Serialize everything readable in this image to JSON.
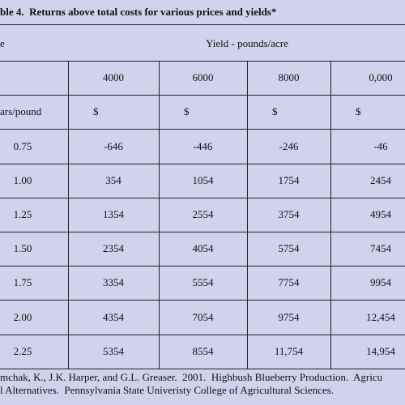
{
  "title": "ble 4.  Returns above total costs for various prices and yields*",
  "table": {
    "group_header": [
      "e",
      "Yield - pounds/acre"
    ],
    "columns": [
      "4000",
      "6000",
      "8000",
      "0,000"
    ],
    "units": [
      "ars/pound",
      "$",
      "$",
      "$",
      "$"
    ],
    "rows": [
      [
        "0.75",
        "-646",
        "-446",
        "-246",
        "-46"
      ],
      [
        "1.00",
        "354",
        "1054",
        "1754",
        "2454"
      ],
      [
        "1.25",
        "1354",
        "2554",
        "3754",
        "4954"
      ],
      [
        "1.50",
        "2354",
        "4054",
        "5754",
        "7454"
      ],
      [
        "1.75",
        "3354",
        "5554",
        "7754",
        "9954"
      ],
      [
        "2.00",
        "4354",
        "7054",
        "9754",
        "12,454"
      ],
      [
        "2.25",
        "5354",
        "8554",
        "11,754",
        "14,954"
      ]
    ]
  },
  "footnote": [
    "mchak, K., J.K. Harper, and G.L. Greaser.  2001.  Highbush Blueberry Production.  Agricu",
    "l Alternatives.  Pennsylvania State Univeristy College of Agricultural Sciences."
  ]
}
